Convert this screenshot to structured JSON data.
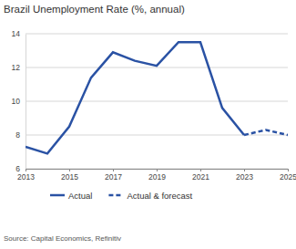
{
  "chart_data": {
    "type": "line",
    "title": "Brazil Unemployment Rate (%, annual)",
    "source": "Source: Capital Economics, Refinitiv",
    "x": [
      2013,
      2014,
      2015,
      2016,
      2017,
      2018,
      2019,
      2020,
      2021,
      2022,
      2023,
      2024,
      2025
    ],
    "series": [
      {
        "name": "Actual",
        "color": "#2a52a4",
        "line_style": "solid",
        "values": [
          7.3,
          6.9,
          8.5,
          11.4,
          12.9,
          12.4,
          12.1,
          13.5,
          13.5,
          9.6,
          8.0,
          null,
          null
        ]
      },
      {
        "name": "Actual & forecast",
        "color": "#2a52a4",
        "line_style": "dashed",
        "values": [
          null,
          null,
          null,
          null,
          null,
          null,
          null,
          null,
          null,
          null,
          8.0,
          8.3,
          8.0
        ]
      }
    ],
    "xlim": [
      2013,
      2025
    ],
    "xticks": [
      2013,
      2015,
      2017,
      2019,
      2021,
      2023,
      2025
    ],
    "ylim": [
      6,
      14
    ],
    "yticks": [
      6,
      8,
      10,
      12,
      14
    ],
    "grid": true,
    "legend": "bottom"
  }
}
